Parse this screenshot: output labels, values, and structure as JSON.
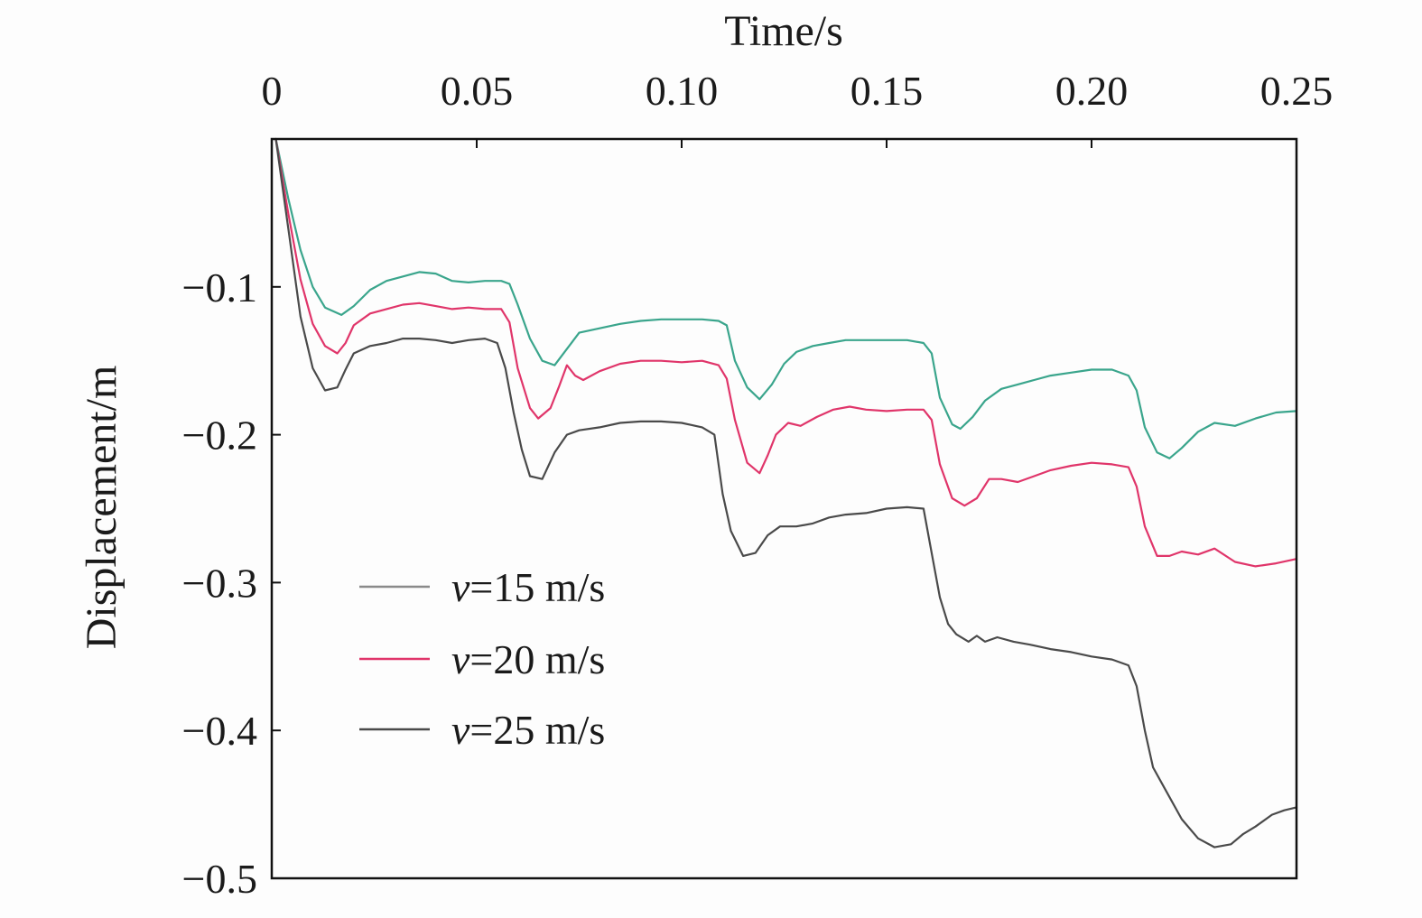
{
  "chart_data": {
    "type": "line",
    "xlabel": "Time/s",
    "ylabel": "Displacement/m",
    "x_axis_position": "top",
    "xlim": [
      0,
      0.25
    ],
    "ylim": [
      -0.5,
      0
    ],
    "x_ticks": [
      "0",
      "0.05",
      "0.10",
      "0.15",
      "0.20",
      "0.25"
    ],
    "x_tick_values": [
      0,
      0.05,
      0.1,
      0.15,
      0.2,
      0.25
    ],
    "y_ticks": [
      "−0.1",
      "−0.2",
      "−0.3",
      "−0.4",
      "−0.5"
    ],
    "y_tick_values": [
      -0.1,
      -0.2,
      -0.3,
      -0.4,
      -0.5
    ],
    "grid": false,
    "legend_position": "lower-left",
    "series": [
      {
        "name": "v=15 m/s",
        "legend_var": "v",
        "legend_rest": "=15 m/s",
        "color": "#3aa58c",
        "legend_color": "#8a8a8a",
        "x": [
          0.001,
          0.004,
          0.007,
          0.01,
          0.013,
          0.017,
          0.02,
          0.024,
          0.028,
          0.032,
          0.036,
          0.04,
          0.044,
          0.048,
          0.052,
          0.056,
          0.058,
          0.06,
          0.063,
          0.066,
          0.069,
          0.072,
          0.075,
          0.08,
          0.085,
          0.09,
          0.095,
          0.1,
          0.105,
          0.109,
          0.111,
          0.113,
          0.116,
          0.119,
          0.122,
          0.125,
          0.128,
          0.132,
          0.136,
          0.14,
          0.145,
          0.15,
          0.155,
          0.159,
          0.161,
          0.163,
          0.166,
          0.168,
          0.171,
          0.174,
          0.178,
          0.182,
          0.186,
          0.19,
          0.195,
          0.2,
          0.205,
          0.209,
          0.211,
          0.213,
          0.216,
          0.219,
          0.222,
          0.226,
          0.23,
          0.235,
          0.24,
          0.245,
          0.25
        ],
        "values": [
          0.0,
          -0.04,
          -0.075,
          -0.1,
          -0.114,
          -0.119,
          -0.113,
          -0.102,
          -0.096,
          -0.093,
          -0.09,
          -0.091,
          -0.096,
          -0.097,
          -0.096,
          -0.096,
          -0.098,
          -0.112,
          -0.135,
          -0.15,
          -0.153,
          -0.142,
          -0.131,
          -0.128,
          -0.125,
          -0.123,
          -0.122,
          -0.122,
          -0.122,
          -0.123,
          -0.126,
          -0.15,
          -0.168,
          -0.176,
          -0.166,
          -0.152,
          -0.144,
          -0.14,
          -0.138,
          -0.136,
          -0.136,
          -0.136,
          -0.136,
          -0.138,
          -0.145,
          -0.175,
          -0.193,
          -0.196,
          -0.188,
          -0.177,
          -0.169,
          -0.166,
          -0.163,
          -0.16,
          -0.158,
          -0.156,
          -0.156,
          -0.16,
          -0.17,
          -0.195,
          -0.212,
          -0.216,
          -0.209,
          -0.198,
          -0.192,
          -0.194,
          -0.189,
          -0.185,
          -0.184
        ]
      },
      {
        "name": "v=20 m/s",
        "legend_var": "v",
        "legend_rest": "=20 m/s",
        "color": "#e0356a",
        "legend_color": "#e0356a",
        "x": [
          0.001,
          0.004,
          0.007,
          0.01,
          0.013,
          0.016,
          0.018,
          0.02,
          0.024,
          0.028,
          0.032,
          0.036,
          0.04,
          0.044,
          0.048,
          0.052,
          0.056,
          0.058,
          0.06,
          0.063,
          0.065,
          0.068,
          0.07,
          0.072,
          0.074,
          0.076,
          0.08,
          0.085,
          0.09,
          0.095,
          0.1,
          0.105,
          0.109,
          0.111,
          0.113,
          0.116,
          0.119,
          0.121,
          0.123,
          0.126,
          0.129,
          0.133,
          0.137,
          0.141,
          0.145,
          0.15,
          0.155,
          0.159,
          0.161,
          0.163,
          0.166,
          0.169,
          0.172,
          0.175,
          0.178,
          0.182,
          0.186,
          0.19,
          0.195,
          0.2,
          0.205,
          0.209,
          0.211,
          0.213,
          0.216,
          0.219,
          0.222,
          0.226,
          0.23,
          0.235,
          0.24,
          0.245,
          0.25
        ],
        "values": [
          0.0,
          -0.05,
          -0.095,
          -0.125,
          -0.14,
          -0.145,
          -0.138,
          -0.126,
          -0.118,
          -0.115,
          -0.112,
          -0.111,
          -0.113,
          -0.115,
          -0.114,
          -0.115,
          -0.115,
          -0.124,
          -0.155,
          -0.182,
          -0.189,
          -0.182,
          -0.168,
          -0.153,
          -0.16,
          -0.163,
          -0.157,
          -0.152,
          -0.15,
          -0.15,
          -0.151,
          -0.15,
          -0.153,
          -0.162,
          -0.19,
          -0.219,
          -0.226,
          -0.214,
          -0.2,
          -0.192,
          -0.194,
          -0.188,
          -0.183,
          -0.181,
          -0.183,
          -0.184,
          -0.183,
          -0.183,
          -0.19,
          -0.22,
          -0.243,
          -0.248,
          -0.243,
          -0.23,
          -0.23,
          -0.232,
          -0.228,
          -0.224,
          -0.221,
          -0.219,
          -0.22,
          -0.222,
          -0.235,
          -0.262,
          -0.282,
          -0.282,
          -0.279,
          -0.281,
          -0.277,
          -0.286,
          -0.289,
          -0.287,
          -0.284
        ]
      },
      {
        "name": "v=25 m/s",
        "legend_var": "v",
        "legend_rest": "=25 m/s",
        "color": "#4a4a4a",
        "legend_color": "#4a4a4a",
        "x": [
          0.001,
          0.004,
          0.007,
          0.01,
          0.013,
          0.016,
          0.018,
          0.02,
          0.024,
          0.028,
          0.032,
          0.036,
          0.04,
          0.044,
          0.048,
          0.052,
          0.055,
          0.057,
          0.059,
          0.061,
          0.063,
          0.066,
          0.069,
          0.072,
          0.075,
          0.08,
          0.085,
          0.09,
          0.095,
          0.1,
          0.105,
          0.108,
          0.11,
          0.112,
          0.115,
          0.118,
          0.121,
          0.124,
          0.128,
          0.132,
          0.136,
          0.14,
          0.145,
          0.15,
          0.155,
          0.159,
          0.161,
          0.163,
          0.165,
          0.167,
          0.17,
          0.172,
          0.174,
          0.177,
          0.181,
          0.185,
          0.19,
          0.195,
          0.2,
          0.205,
          0.209,
          0.211,
          0.213,
          0.215,
          0.218,
          0.222,
          0.226,
          0.23,
          0.234,
          0.237,
          0.24,
          0.244,
          0.247,
          0.25
        ],
        "values": [
          0.0,
          -0.06,
          -0.12,
          -0.155,
          -0.17,
          -0.168,
          -0.156,
          -0.145,
          -0.14,
          -0.138,
          -0.135,
          -0.135,
          -0.136,
          -0.138,
          -0.136,
          -0.135,
          -0.138,
          -0.155,
          -0.185,
          -0.21,
          -0.228,
          -0.23,
          -0.212,
          -0.2,
          -0.197,
          -0.195,
          -0.192,
          -0.191,
          -0.191,
          -0.192,
          -0.195,
          -0.2,
          -0.24,
          -0.265,
          -0.282,
          -0.28,
          -0.268,
          -0.262,
          -0.262,
          -0.26,
          -0.256,
          -0.254,
          -0.253,
          -0.25,
          -0.249,
          -0.25,
          -0.28,
          -0.31,
          -0.328,
          -0.335,
          -0.34,
          -0.336,
          -0.34,
          -0.337,
          -0.34,
          -0.342,
          -0.345,
          -0.347,
          -0.35,
          -0.352,
          -0.356,
          -0.37,
          -0.4,
          -0.425,
          -0.44,
          -0.46,
          -0.473,
          -0.479,
          -0.477,
          -0.47,
          -0.465,
          -0.457,
          -0.454,
          -0.452
        ]
      }
    ]
  }
}
